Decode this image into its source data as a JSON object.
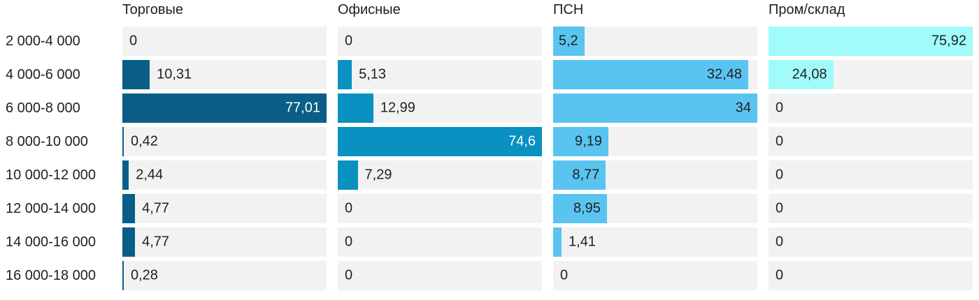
{
  "chart_data": {
    "type": "bar",
    "orientation": "horizontal",
    "scaling": "each column scaled to its own max value",
    "grid": false,
    "track_color": "#f2f2f2",
    "text_color": "#212121",
    "background_color": "#ffffff",
    "categories": [
      "2 000-4 000",
      "4 000-6 000",
      "6 000-8 000",
      "8 000-10 000",
      "10 000-12 000",
      "12 000-14 000",
      "14 000-16 000",
      "16 000-18 000"
    ],
    "series": [
      {
        "name": "Торговые",
        "color": "#0a5e87",
        "label_color_inside": "#ffffff",
        "values": [
          0,
          10.31,
          77.01,
          0.42,
          2.44,
          4.77,
          4.77,
          0.28
        ],
        "labels": [
          "0",
          "10,31",
          "77,01",
          "0,42",
          "2,44",
          "4,77",
          "4,77",
          "0,28"
        ]
      },
      {
        "name": "Офисные",
        "color": "#0891c1",
        "label_color_inside": "#ffffff",
        "values": [
          0,
          5.13,
          12.99,
          74.6,
          7.29,
          0,
          0,
          0
        ],
        "labels": [
          "0",
          "5,13",
          "12,99",
          "74,6",
          "7,29",
          "0",
          "0",
          "0"
        ]
      },
      {
        "name": "ПСН",
        "color": "#5ac4f1",
        "label_color_inside": "#212121",
        "values": [
          5.2,
          32.48,
          34,
          9.19,
          8.77,
          8.95,
          1.41,
          0
        ],
        "labels": [
          "5,2",
          "32,48",
          "34",
          "9,19",
          "8,77",
          "8,95",
          "1,41",
          "0"
        ]
      },
      {
        "name": "Пром/склад",
        "color": "#a0fbfa",
        "label_color_inside": "#212121",
        "values": [
          75.92,
          24.08,
          0,
          0,
          0,
          0,
          0,
          0
        ],
        "labels": [
          "75,92",
          "24,08",
          "0",
          "0",
          "0",
          "0",
          "0",
          "0"
        ]
      }
    ]
  }
}
